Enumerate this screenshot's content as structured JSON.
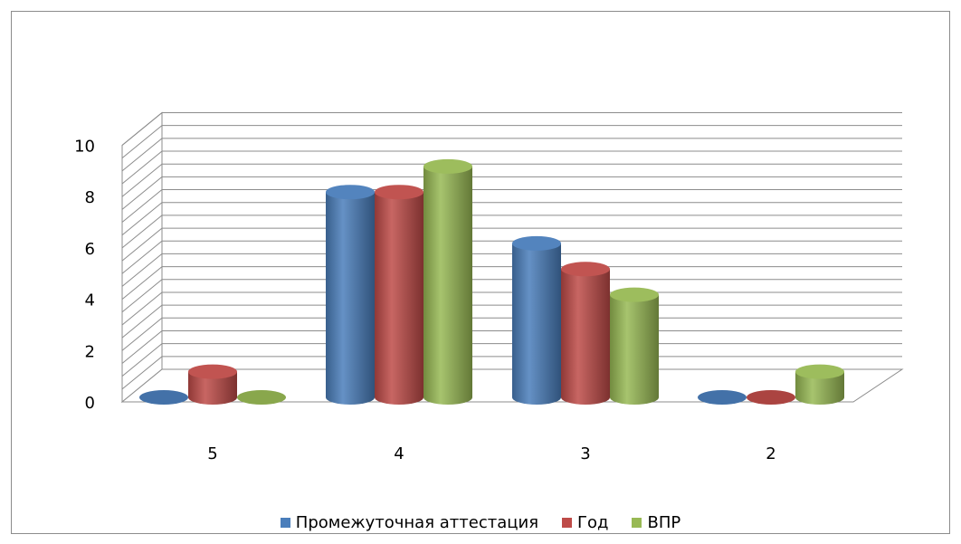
{
  "chart_data": {
    "type": "bar",
    "style": "3d-cylinder",
    "categories": [
      "5",
      "4",
      "3",
      "2"
    ],
    "series": [
      {
        "name": "Промежуточная аттестация",
        "values": [
          0,
          8,
          6,
          0
        ],
        "color": "#4a7ebb"
      },
      {
        "name": "Год",
        "values": [
          1,
          8,
          5,
          0
        ],
        "color": "#be4b48"
      },
      {
        "name": "ВПР",
        "values": [
          0,
          9,
          4,
          1
        ],
        "color": "#98b954"
      }
    ],
    "yticks": [
      "0",
      "2",
      "4",
      "6",
      "8",
      "10"
    ],
    "ylim": [
      0,
      10
    ],
    "grid": true,
    "legend_position": "bottom"
  }
}
